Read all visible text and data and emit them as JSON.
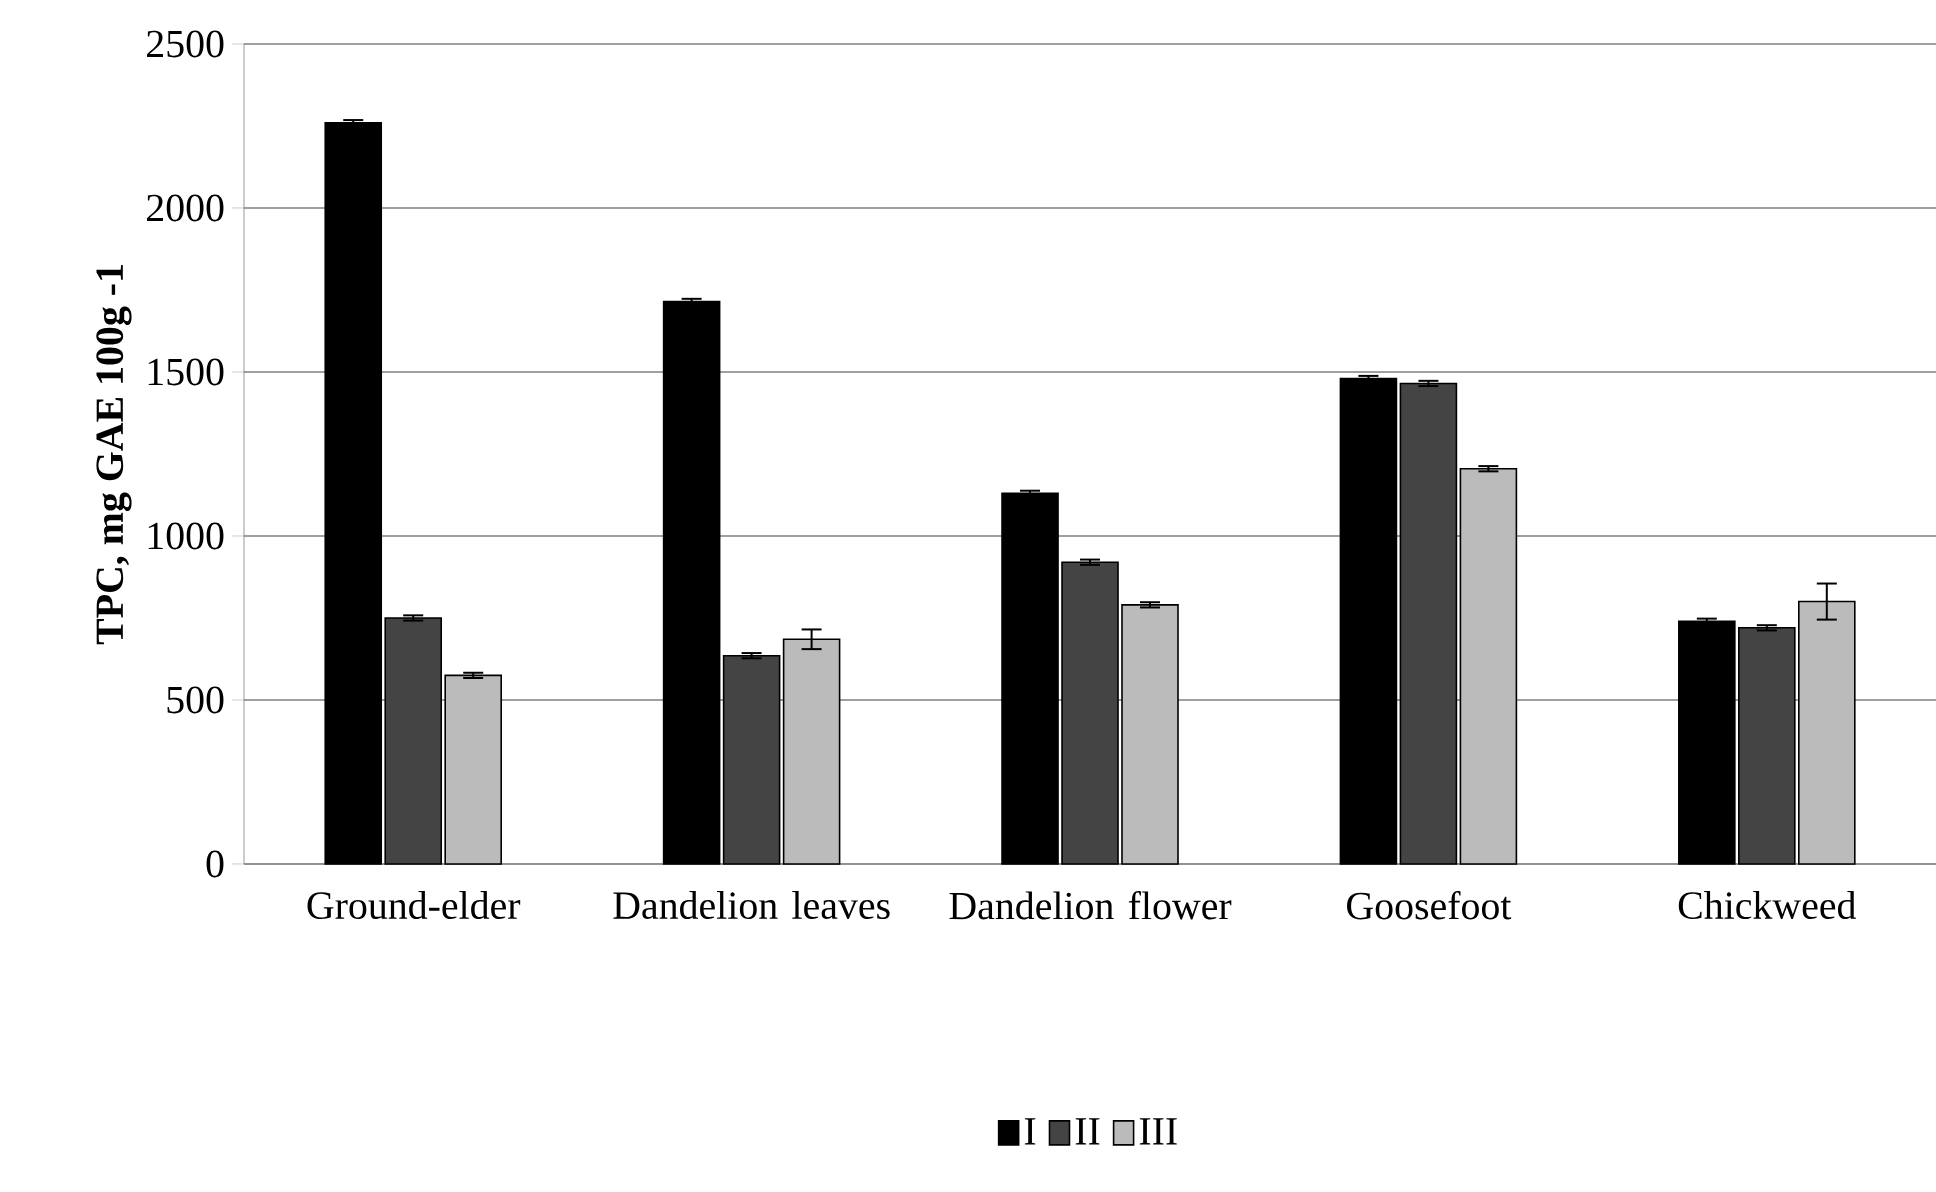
{
  "chart_data": {
    "type": "bar",
    "ylabel": "TPC, mg GAE 100g -1",
    "categories": [
      "Ground-elder",
      "Dandelion leaves",
      "Dandelion flower",
      "Goosefoot",
      "Chickweed"
    ],
    "series": [
      {
        "name": "I",
        "color": "#000000",
        "values": [
          2260,
          1715,
          1130,
          1480,
          740
        ],
        "errors": [
          8,
          8,
          8,
          8,
          8
        ]
      },
      {
        "name": "II",
        "color": "#444444",
        "values": [
          750,
          635,
          920,
          1465,
          720
        ],
        "errors": [
          8,
          8,
          8,
          8,
          8
        ]
      },
      {
        "name": "III",
        "color": "#bbbbbb",
        "values": [
          575,
          685,
          790,
          1205,
          800
        ],
        "errors": [
          8,
          30,
          8,
          8,
          55
        ]
      }
    ],
    "ylim": [
      0,
      2500
    ],
    "yticks": [
      0,
      500,
      1000,
      1500,
      2000,
      2500
    ],
    "grid": "y",
    "legend": "bottom"
  }
}
